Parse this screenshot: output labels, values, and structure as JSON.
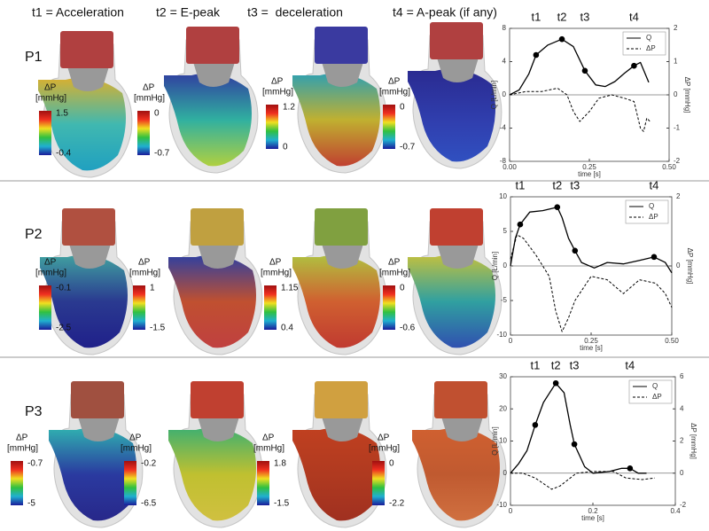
{
  "header": {
    "columns": [
      "t1 = Acceleration",
      "t2 = E-peak",
      "t3 =  deceleration",
      "t4 = A-peak (if any)"
    ]
  },
  "panels": [
    {
      "label": "P1",
      "colorbars": [
        {
          "title": "ΔP",
          "unit": "[mmHg]",
          "max": 1.5,
          "min": -0.4
        },
        {
          "title": "ΔP",
          "unit": "[mmHg]",
          "max": 0,
          "min": -0.7
        },
        {
          "title": "ΔP",
          "unit": "[mmHg]",
          "max": 1.2,
          "min": 0
        },
        {
          "title": "ΔP",
          "unit": "[mmHg]",
          "max": 0,
          "min": -0.7
        }
      ]
    },
    {
      "label": "P2",
      "colorbars": [
        {
          "title": "ΔP",
          "unit": "[mmHg]",
          "max": -0.1,
          "min": -2.5
        },
        {
          "title": "ΔP",
          "unit": "[mmHg]",
          "max": 1,
          "min": -1.5
        },
        {
          "title": "ΔP",
          "unit": "[mmHg]",
          "max": 1.15,
          "min": 0.4
        },
        {
          "title": "ΔP",
          "unit": "[mmHg]",
          "max": 0,
          "min": -0.6
        }
      ]
    },
    {
      "label": "P3",
      "colorbars": [
        {
          "title": "ΔP",
          "unit": "[mmHg]",
          "max": -0.7,
          "min": -5
        },
        {
          "title": "ΔP",
          "unit": "[mmHg]",
          "max": -0.2,
          "min": -6.5
        },
        {
          "title": "ΔP",
          "unit": "[mmHg]",
          "max": 1.8,
          "min": -1.5
        },
        {
          "title": "ΔP",
          "unit": "[mmHg]",
          "max": 0,
          "min": -2.2
        }
      ]
    }
  ],
  "chart_data": [
    {
      "type": "line",
      "xlabel": "time [s]",
      "ylabel": "Q [L/min]",
      "y2label": "ΔP [mmHg]",
      "legend": "upper right",
      "xlim": [
        0,
        0.5
      ],
      "xticks": [
        {
          "value": 0,
          "label": "0.00"
        },
        0.25,
        {
          "value": 0.5,
          "label": "0.50"
        }
      ],
      "ylim": [
        -8,
        8
      ],
      "yticks": [
        -8,
        -4,
        0,
        4,
        8
      ],
      "y2lim": [
        -2,
        2
      ],
      "y2ticks": [
        -2,
        -1,
        0,
        1,
        2
      ],
      "series": [
        {
          "name": "Q",
          "color": "#000000",
          "dash": "solid",
          "x": [
            0,
            0.03,
            0.06,
            0.083,
            0.12,
            0.164,
            0.2,
            0.236,
            0.27,
            0.3,
            0.33,
            0.36,
            0.39,
            0.41,
            0.436
          ],
          "values": [
            0,
            0.6,
            2.5,
            4.8,
            6.0,
            6.7,
            5.8,
            2.9,
            1.2,
            1.0,
            1.6,
            2.6,
            3.5,
            3.9,
            1.5
          ]
        },
        {
          "name": "ΔP",
          "color": "#000000",
          "dash": "dashed",
          "axis": "y2",
          "x": [
            0,
            0.05,
            0.1,
            0.15,
            0.18,
            0.2,
            0.22,
            0.25,
            0.28,
            0.32,
            0.36,
            0.39,
            0.41,
            0.42,
            0.43,
            0.44
          ],
          "values": [
            0,
            0.1,
            0.1,
            0.2,
            0,
            -0.5,
            -0.8,
            -0.5,
            -0.1,
            0,
            -0.1,
            -0.2,
            -1.0,
            -1.1,
            -0.7,
            -0.8
          ]
        }
      ],
      "markers": {
        "labels": [
          "t1",
          "t2",
          "t3",
          "t4"
        ],
        "x": [
          0.083,
          0.164,
          0.236,
          0.39
        ],
        "values": [
          4.8,
          6.7,
          2.9,
          3.5
        ]
      }
    },
    {
      "type": "line",
      "xlabel": "time [s]",
      "ylabel": "Q [L/min]",
      "y2label": "ΔP [mmHg]",
      "legend": "upper right",
      "xlim": [
        0,
        0.5
      ],
      "xticks": [
        0,
        0.25,
        {
          "value": 0.5,
          "label": "0.50"
        }
      ],
      "ylim": [
        -10,
        10
      ],
      "yticks": [
        -10,
        -5,
        0,
        5,
        10
      ],
      "y2lim": [
        -2,
        2
      ],
      "y2ticks": [
        0,
        2
      ],
      "series": [
        {
          "name": "Q",
          "color": "#000000",
          "dash": "solid",
          "x": [
            0,
            0.015,
            0.03,
            0.06,
            0.1,
            0.145,
            0.16,
            0.18,
            0.2,
            0.22,
            0.26,
            0.3,
            0.35,
            0.4,
            0.445,
            0.48,
            0.5
          ],
          "values": [
            0,
            4,
            6,
            7.8,
            8,
            8.5,
            7,
            4,
            2.2,
            0.5,
            -0.3,
            0.5,
            0.3,
            0.8,
            1.3,
            0.5,
            -1
          ]
        },
        {
          "name": "ΔP",
          "color": "#000000",
          "dash": "dashed",
          "axis": "y2",
          "x": [
            0,
            0.02,
            0.04,
            0.08,
            0.12,
            0.14,
            0.16,
            0.18,
            0.2,
            0.25,
            0.3,
            0.35,
            0.4,
            0.45,
            0.48,
            0.5
          ],
          "values": [
            0.2,
            0.9,
            0.8,
            0.3,
            -0.3,
            -1.3,
            -1.9,
            -1.5,
            -1.0,
            -0.3,
            -0.4,
            -0.8,
            -0.4,
            -0.5,
            -0.8,
            -1.2
          ]
        }
      ],
      "markers": {
        "labels": [
          "t1",
          "t2",
          "t3",
          "t4"
        ],
        "x": [
          0.03,
          0.145,
          0.2,
          0.445
        ],
        "values": [
          6,
          8.5,
          2.2,
          1.3
        ]
      }
    },
    {
      "type": "line",
      "xlabel": "time [s]",
      "ylabel": "Q [L/min]",
      "y2label": "ΔP [mmHg]",
      "legend": "upper right",
      "xlim": [
        0,
        0.4
      ],
      "xticks": [
        0,
        0.2,
        0.4
      ],
      "ylim": [
        -10,
        30
      ],
      "yticks": [
        -10,
        0,
        10,
        20,
        30
      ],
      "y2lim": [
        -2,
        6
      ],
      "y2ticks": [
        -2,
        0,
        2,
        4,
        6
      ],
      "series": [
        {
          "name": "Q",
          "color": "#000000",
          "dash": "solid",
          "x": [
            0,
            0.02,
            0.04,
            0.06,
            0.08,
            0.11,
            0.13,
            0.145,
            0.155,
            0.18,
            0.2,
            0.24,
            0.27,
            0.29,
            0.31,
            0.33
          ],
          "values": [
            0,
            3,
            7,
            15,
            22,
            28,
            25,
            15,
            9,
            2,
            0,
            0.5,
            1.5,
            1.5,
            0,
            0
          ]
        },
        {
          "name": "ΔP",
          "color": "#000000",
          "dash": "dashed",
          "axis": "y2",
          "x": [
            0,
            0.03,
            0.06,
            0.1,
            0.12,
            0.16,
            0.2,
            0.25,
            0.28,
            0.32,
            0.35
          ],
          "values": [
            0,
            0,
            -0.3,
            -1,
            -0.8,
            0,
            0.1,
            0.1,
            -0.3,
            -0.4,
            -0.3
          ]
        }
      ],
      "markers": {
        "labels": [
          "t1",
          "t2",
          "t3",
          "t4"
        ],
        "x": [
          0.06,
          0.11,
          0.155,
          0.29
        ],
        "values": [
          15,
          28,
          9,
          1.5
        ]
      }
    }
  ]
}
